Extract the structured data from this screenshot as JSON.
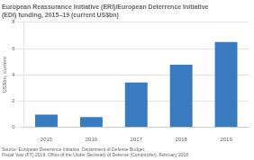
{
  "chart_data": {
    "type": "bar",
    "title": "European Reassurance Initiative (ERI)/European Deterrence Initiative\n(EDI) funding, 2015–19 (current US$bn)",
    "source": "Source: European Deterrence Initiative, Department of Defense Budget,\nFiscal Year (FY) 2019, Office of the Under Secretary of Defense (Comptroller), February 2018",
    "categories": [
      "2015",
      "2016",
      "2017",
      "2018",
      "2019"
    ],
    "values": [
      0.985,
      0.789,
      3.42,
      4.77,
      6.5
    ],
    "color": "#3a7bbf",
    "y_label": "US$bn, current",
    "ylim": [
      0,
      8
    ],
    "yticks": [
      0,
      2,
      4,
      6,
      8
    ],
    "grid": true
  }
}
